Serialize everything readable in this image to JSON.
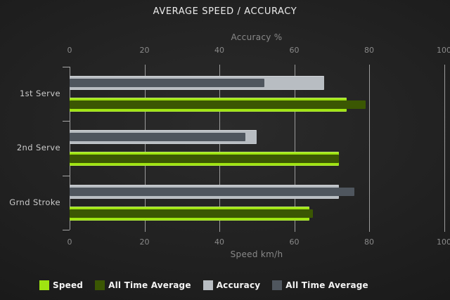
{
  "chart": {
    "title": "AVERAGE SPEED / ACCURACY",
    "top_axis_label": "Accuracy %",
    "bottom_axis_label": "Speed km/h"
  },
  "legend": {
    "items": [
      {
        "label": "Speed",
        "color": "#9fe411"
      },
      {
        "label": "All Time Average",
        "color": "#3b5703"
      },
      {
        "label": "Accuracy",
        "color": "#b8bdc2"
      },
      {
        "label": "All Time Average",
        "color": "#4f565e"
      }
    ]
  },
  "chart_data": {
    "type": "bar",
    "orientation": "horizontal",
    "title": "AVERAGE SPEED / ACCURACY",
    "categories": [
      "1st Serve",
      "2nd Serve",
      "Grnd Stroke"
    ],
    "series": [
      {
        "name": "Speed",
        "axis": "bottom",
        "color": "#9fe411",
        "values": [
          74,
          72,
          64
        ]
      },
      {
        "name": "All Time Average",
        "axis": "bottom",
        "color": "#3b5703",
        "values": [
          79,
          72,
          65
        ]
      },
      {
        "name": "Accuracy",
        "axis": "top",
        "color": "#b8bdc2",
        "values": [
          68,
          50,
          72
        ]
      },
      {
        "name": "All Time Average",
        "axis": "top",
        "color": "#4f565e",
        "values": [
          52,
          47,
          76
        ]
      }
    ],
    "top_axis": {
      "label": "Accuracy %",
      "range": [
        0,
        100
      ],
      "ticks": [
        0,
        20,
        40,
        60,
        80,
        100
      ]
    },
    "bottom_axis": {
      "label": "Speed km/h",
      "range": [
        0,
        100
      ],
      "ticks": [
        0,
        20,
        40,
        60,
        80,
        100
      ]
    },
    "grid": true,
    "legend_position": "bottom"
  }
}
